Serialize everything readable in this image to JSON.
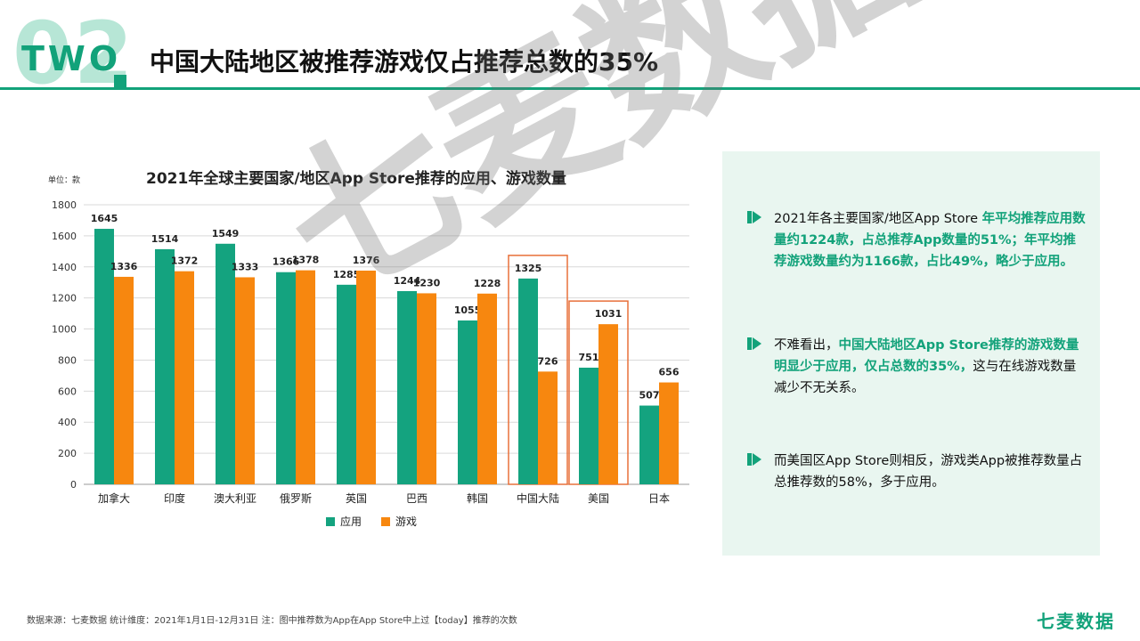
{
  "header": {
    "section_number": "02",
    "section_word": "TWO",
    "title": "中国大陆地区被推荐游戏仅占推荐总数的35%"
  },
  "chart_data": {
    "type": "bar",
    "title": "2021年全球主要国家/地区App Store推荐的应用、游戏数量",
    "unit_label": "单位：款",
    "categories": [
      "加拿大",
      "印度",
      "澳大利亚",
      "俄罗斯",
      "英国",
      "巴西",
      "韩国",
      "中国大陆",
      "美国",
      "日本"
    ],
    "series": [
      {
        "name": "应用",
        "color": "#14a37f",
        "values": [
          1645,
          1514,
          1549,
          1366,
          1285,
          1244,
          1055,
          1325,
          751,
          507
        ]
      },
      {
        "name": "游戏",
        "color": "#f7870f",
        "values": [
          1336,
          1372,
          1333,
          1378,
          1376,
          1230,
          1228,
          726,
          1031,
          656
        ]
      }
    ],
    "ylim": [
      0,
      1800
    ],
    "yticks": [
      0,
      200,
      400,
      600,
      800,
      1000,
      1200,
      1400,
      1600,
      1800
    ],
    "highlighted_categories": [
      "中国大陆",
      "美国"
    ],
    "highlight_color": "#e8703a",
    "grid": true,
    "legend_position": "bottom"
  },
  "panel": {
    "bullets": [
      {
        "parts": [
          {
            "text": "2021年各主要国家/地区App Store ",
            "hl": false
          },
          {
            "text": "年平均推荐应用数量约1224款，占总推荐App数量的51%；年平均推荐游戏数量约为1166款，占比49%，略少于应用。",
            "hl": true
          }
        ]
      },
      {
        "parts": [
          {
            "text": "不难看出，",
            "hl": false
          },
          {
            "text": "中国大陆地区App Store推荐的游戏数量明显少于应用，仅占总数的35%，",
            "hl": true
          },
          {
            "text": "这与在线游戏数量减少不无关系。",
            "hl": false
          }
        ]
      },
      {
        "parts": [
          {
            "text": "而美国区App Store则相反，游戏类App被推荐数量占总推荐数的58%，多于应用。",
            "hl": false
          }
        ]
      }
    ]
  },
  "watermark": "七麦数据",
  "footer": "数据来源：七麦数据  统计维度：2021年1月1日-12月31日  注：图中推荐数为App在App Store中上过【today】推荐的次数",
  "logo": "七麦数据",
  "colors": {
    "accent": "#12a27a",
    "panel_bg": "#e9f6f0"
  }
}
